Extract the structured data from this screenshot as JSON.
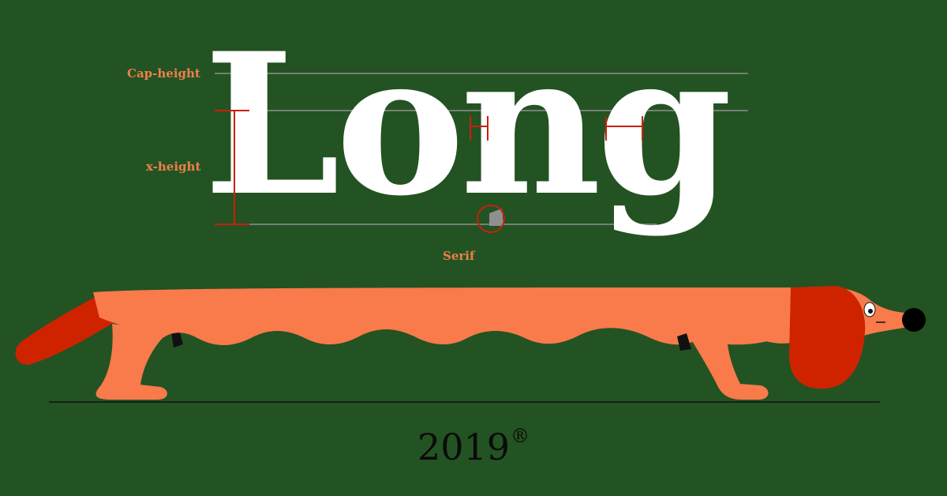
{
  "poster": {
    "labels": {
      "cap_height": "Cap-height",
      "x_height": "x-height",
      "serif": "Serif"
    },
    "word": "Long",
    "year": "2019",
    "mark": "®"
  },
  "colors": {
    "background": "#235322",
    "label": "#ee7f4a",
    "letterforms": "#ffffff",
    "guides": "#8f8f8f",
    "measure_marks": "#c8200e",
    "dog_body": "#f97a4b",
    "dog_ear_tail": "#cf2300",
    "nose": "#000000",
    "ground_line": "#111111"
  },
  "illustration": {
    "subject": "long-dachshund",
    "annotations": [
      "cap-height-guide",
      "x-height-guide",
      "baseline-guide",
      "serif-callout-circle",
      "sidebearing-measures"
    ]
  }
}
